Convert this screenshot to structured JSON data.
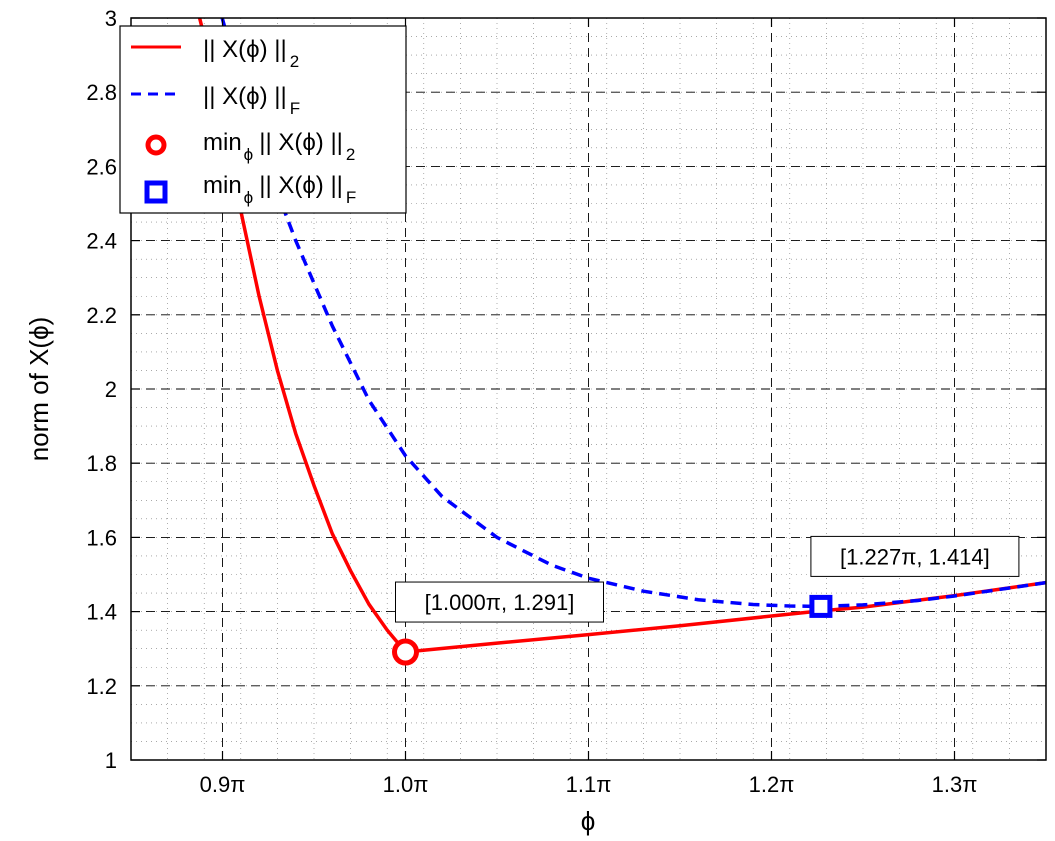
{
  "chart_data": {
    "type": "line",
    "xlabel": "ϕ",
    "ylabel": "norm of X(ϕ)",
    "xlim": [
      0.85,
      1.35
    ],
    "ylim": [
      1.0,
      3.0
    ],
    "grid": "major dashed, minor dotted",
    "legend_position": "top-left",
    "x_ticks": [
      {
        "value": 0.9,
        "label": "0.9π"
      },
      {
        "value": 1.0,
        "label": "1.0π"
      },
      {
        "value": 1.1,
        "label": "1.1π"
      },
      {
        "value": 1.2,
        "label": "1.2π"
      },
      {
        "value": 1.3,
        "label": "1.3π"
      }
    ],
    "y_ticks": [
      {
        "value": 1.0,
        "label": "1"
      },
      {
        "value": 1.2,
        "label": "1.2"
      },
      {
        "value": 1.4,
        "label": "1.4"
      },
      {
        "value": 1.6,
        "label": "1.6"
      },
      {
        "value": 1.8,
        "label": "1.8"
      },
      {
        "value": 2.0,
        "label": "2"
      },
      {
        "value": 2.2,
        "label": "2.2"
      },
      {
        "value": 2.4,
        "label": "2.4"
      },
      {
        "value": 2.6,
        "label": "2.6"
      },
      {
        "value": 2.8,
        "label": "2.8"
      },
      {
        "value": 3.0,
        "label": "3"
      }
    ],
    "series": [
      {
        "legend_main": "|| X(ϕ) ||",
        "legend_sub": "2",
        "color": "#ff0000",
        "style": "solid",
        "x": [
          0.885,
          0.9,
          0.91,
          0.92,
          0.93,
          0.94,
          0.95,
          0.96,
          0.97,
          0.98,
          0.99,
          1.0,
          1.05,
          1.1,
          1.15,
          1.2,
          1.227,
          1.25,
          1.3,
          1.35
        ],
        "y": [
          3.05,
          2.75,
          2.48,
          2.25,
          2.05,
          1.88,
          1.74,
          1.61,
          1.51,
          1.42,
          1.35,
          1.291,
          1.315,
          1.338,
          1.362,
          1.388,
          1.402,
          1.412,
          1.443,
          1.478
        ]
      },
      {
        "legend_main": "|| X(ϕ) ||",
        "legend_sub": "F",
        "color": "#0000ff",
        "style": "dashed",
        "x": [
          0.897,
          0.91,
          0.92,
          0.94,
          0.96,
          0.98,
          1.0,
          1.02,
          1.05,
          1.08,
          1.1,
          1.13,
          1.16,
          1.19,
          1.21,
          1.227,
          1.25,
          1.28,
          1.3,
          1.35
        ],
        "y": [
          3.05,
          2.82,
          2.66,
          2.4,
          2.17,
          1.97,
          1.82,
          1.71,
          1.6,
          1.525,
          1.49,
          1.455,
          1.432,
          1.419,
          1.415,
          1.414,
          1.418,
          1.43,
          1.442,
          1.478
        ]
      }
    ],
    "markers": [
      {
        "legend_main": "min",
        "legend_sub_phi": "ϕ",
        "legend_tail": "|| X(ϕ) ||",
        "legend_sub": "2",
        "shape": "circle",
        "color": "#ff0000",
        "x": 1.0,
        "y": 1.291,
        "annotation": "[1.000π, 1.291]"
      },
      {
        "legend_main": "min",
        "legend_sub_phi": "ϕ",
        "legend_tail": "|| X(ϕ) ||",
        "legend_sub": "F",
        "shape": "square",
        "color": "#0000ff",
        "x": 1.227,
        "y": 1.414,
        "annotation": "[1.227π, 1.414]"
      }
    ]
  }
}
